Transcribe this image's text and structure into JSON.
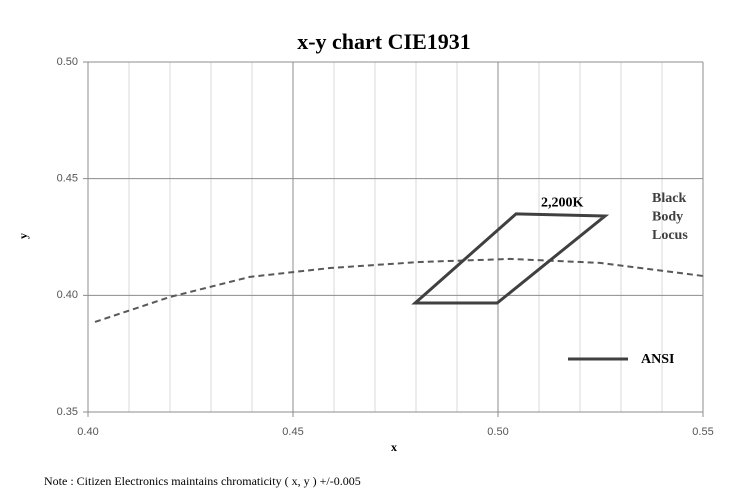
{
  "chart_data": {
    "type": "scatter",
    "title": "x-y chart  CIE1931",
    "x_label": "x",
    "y_label": "y",
    "xlim": [
      0.4,
      0.55
    ],
    "ylim": [
      0.35,
      0.5
    ],
    "xticks": [
      {
        "value": 0.4,
        "label": "0.40"
      },
      {
        "value": 0.45,
        "label": "0.45"
      },
      {
        "value": 0.5,
        "label": "0.50"
      },
      {
        "value": 0.55,
        "label": "0.55"
      }
    ],
    "yticks": [
      {
        "value": 0.35,
        "label": "0.35"
      },
      {
        "value": 0.4,
        "label": "0.40"
      },
      {
        "value": 0.45,
        "label": "0.45"
      },
      {
        "value": 0.5,
        "label": "0.50"
      }
    ],
    "x_minor_step": 0.01,
    "grid": true,
    "series": [
      {
        "name": "Black Body Locus",
        "color": "#595959",
        "style": "dashed",
        "legend": false,
        "x": [
          0.4017,
          0.42,
          0.4395,
          0.459,
          0.481,
          0.503,
          0.5249,
          0.55
        ],
        "y": [
          0.3886,
          0.3993,
          0.4079,
          0.4117,
          0.4143,
          0.4156,
          0.4139,
          0.4083
        ]
      },
      {
        "name": "ANSI",
        "color": "#404040",
        "style": "closed",
        "legend": true,
        "x": [
          0.4798,
          0.4998,
          0.5261,
          0.5044
        ],
        "y": [
          0.3967,
          0.3967,
          0.434,
          0.4349
        ]
      }
    ],
    "annotations": [
      {
        "text": "2,200K",
        "x": 0.5105,
        "y": 0.4395
      }
    ],
    "note": "Note : Citizen Electronics maintains chromaticity ( x, y ) +/-0.005"
  }
}
